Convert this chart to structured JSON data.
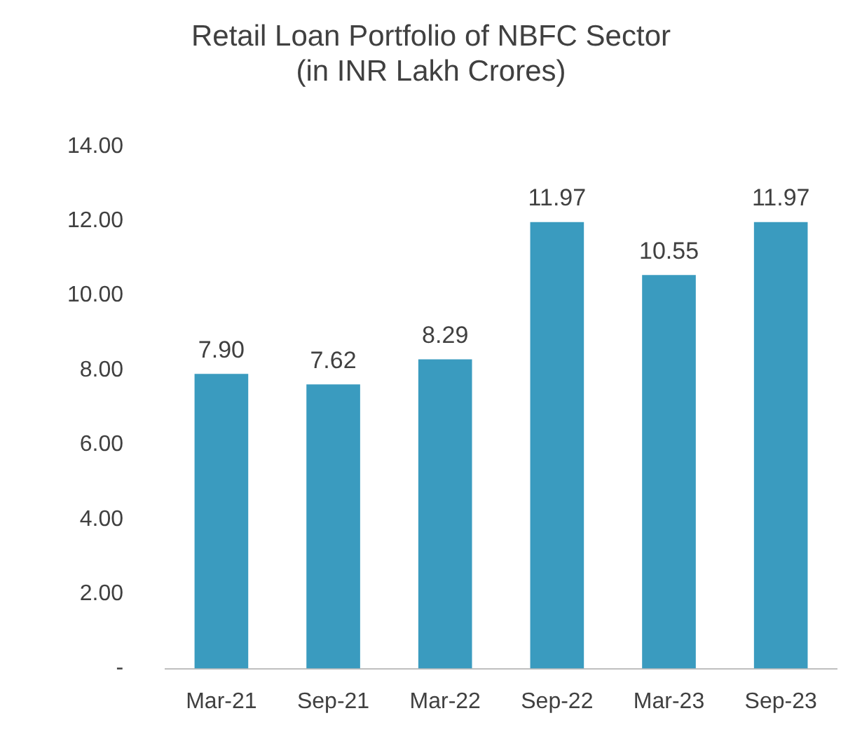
{
  "chart_data": {
    "type": "bar",
    "title": "Retail Loan Portfolio of NBFC Sector\n(in INR Lakh Crores)",
    "categories": [
      "Mar-21",
      "Sep-21",
      "Mar-22",
      "Sep-22",
      "Mar-23",
      "Sep-23"
    ],
    "values": [
      7.9,
      7.62,
      8.29,
      11.97,
      10.55,
      11.97
    ],
    "value_labels": [
      "7.90",
      "7.62",
      "8.29",
      "11.97",
      "10.55",
      "11.97"
    ],
    "color": "#3a9bbf",
    "ylim": [
      0,
      14
    ],
    "yticks": [
      {
        "value": 0,
        "label": "-"
      },
      {
        "value": 2,
        "label": "2.00"
      },
      {
        "value": 4,
        "label": "4.00"
      },
      {
        "value": 6,
        "label": "6.00"
      },
      {
        "value": 8,
        "label": "8.00"
      },
      {
        "value": 10,
        "label": "10.00"
      },
      {
        "value": 12,
        "label": "12.00"
      },
      {
        "value": 14,
        "label": "14.00"
      }
    ],
    "grid": false
  }
}
